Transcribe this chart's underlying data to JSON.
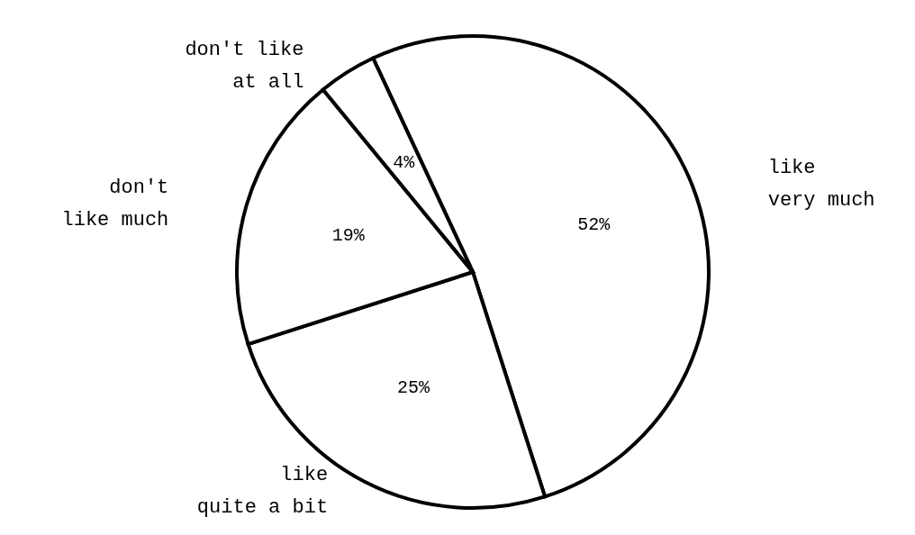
{
  "chart_data": {
    "type": "pie",
    "categories": [
      "like\nvery much",
      "like\nquite a bit",
      "don't\nlike much",
      "don't like\nat all"
    ],
    "values": [
      52,
      25,
      19,
      4
    ],
    "value_labels": [
      "52%",
      "25%",
      "19%",
      "4%"
    ],
    "colors": [
      "#ffffff",
      "#ffffff",
      "#ffffff",
      "#ffffff"
    ]
  }
}
